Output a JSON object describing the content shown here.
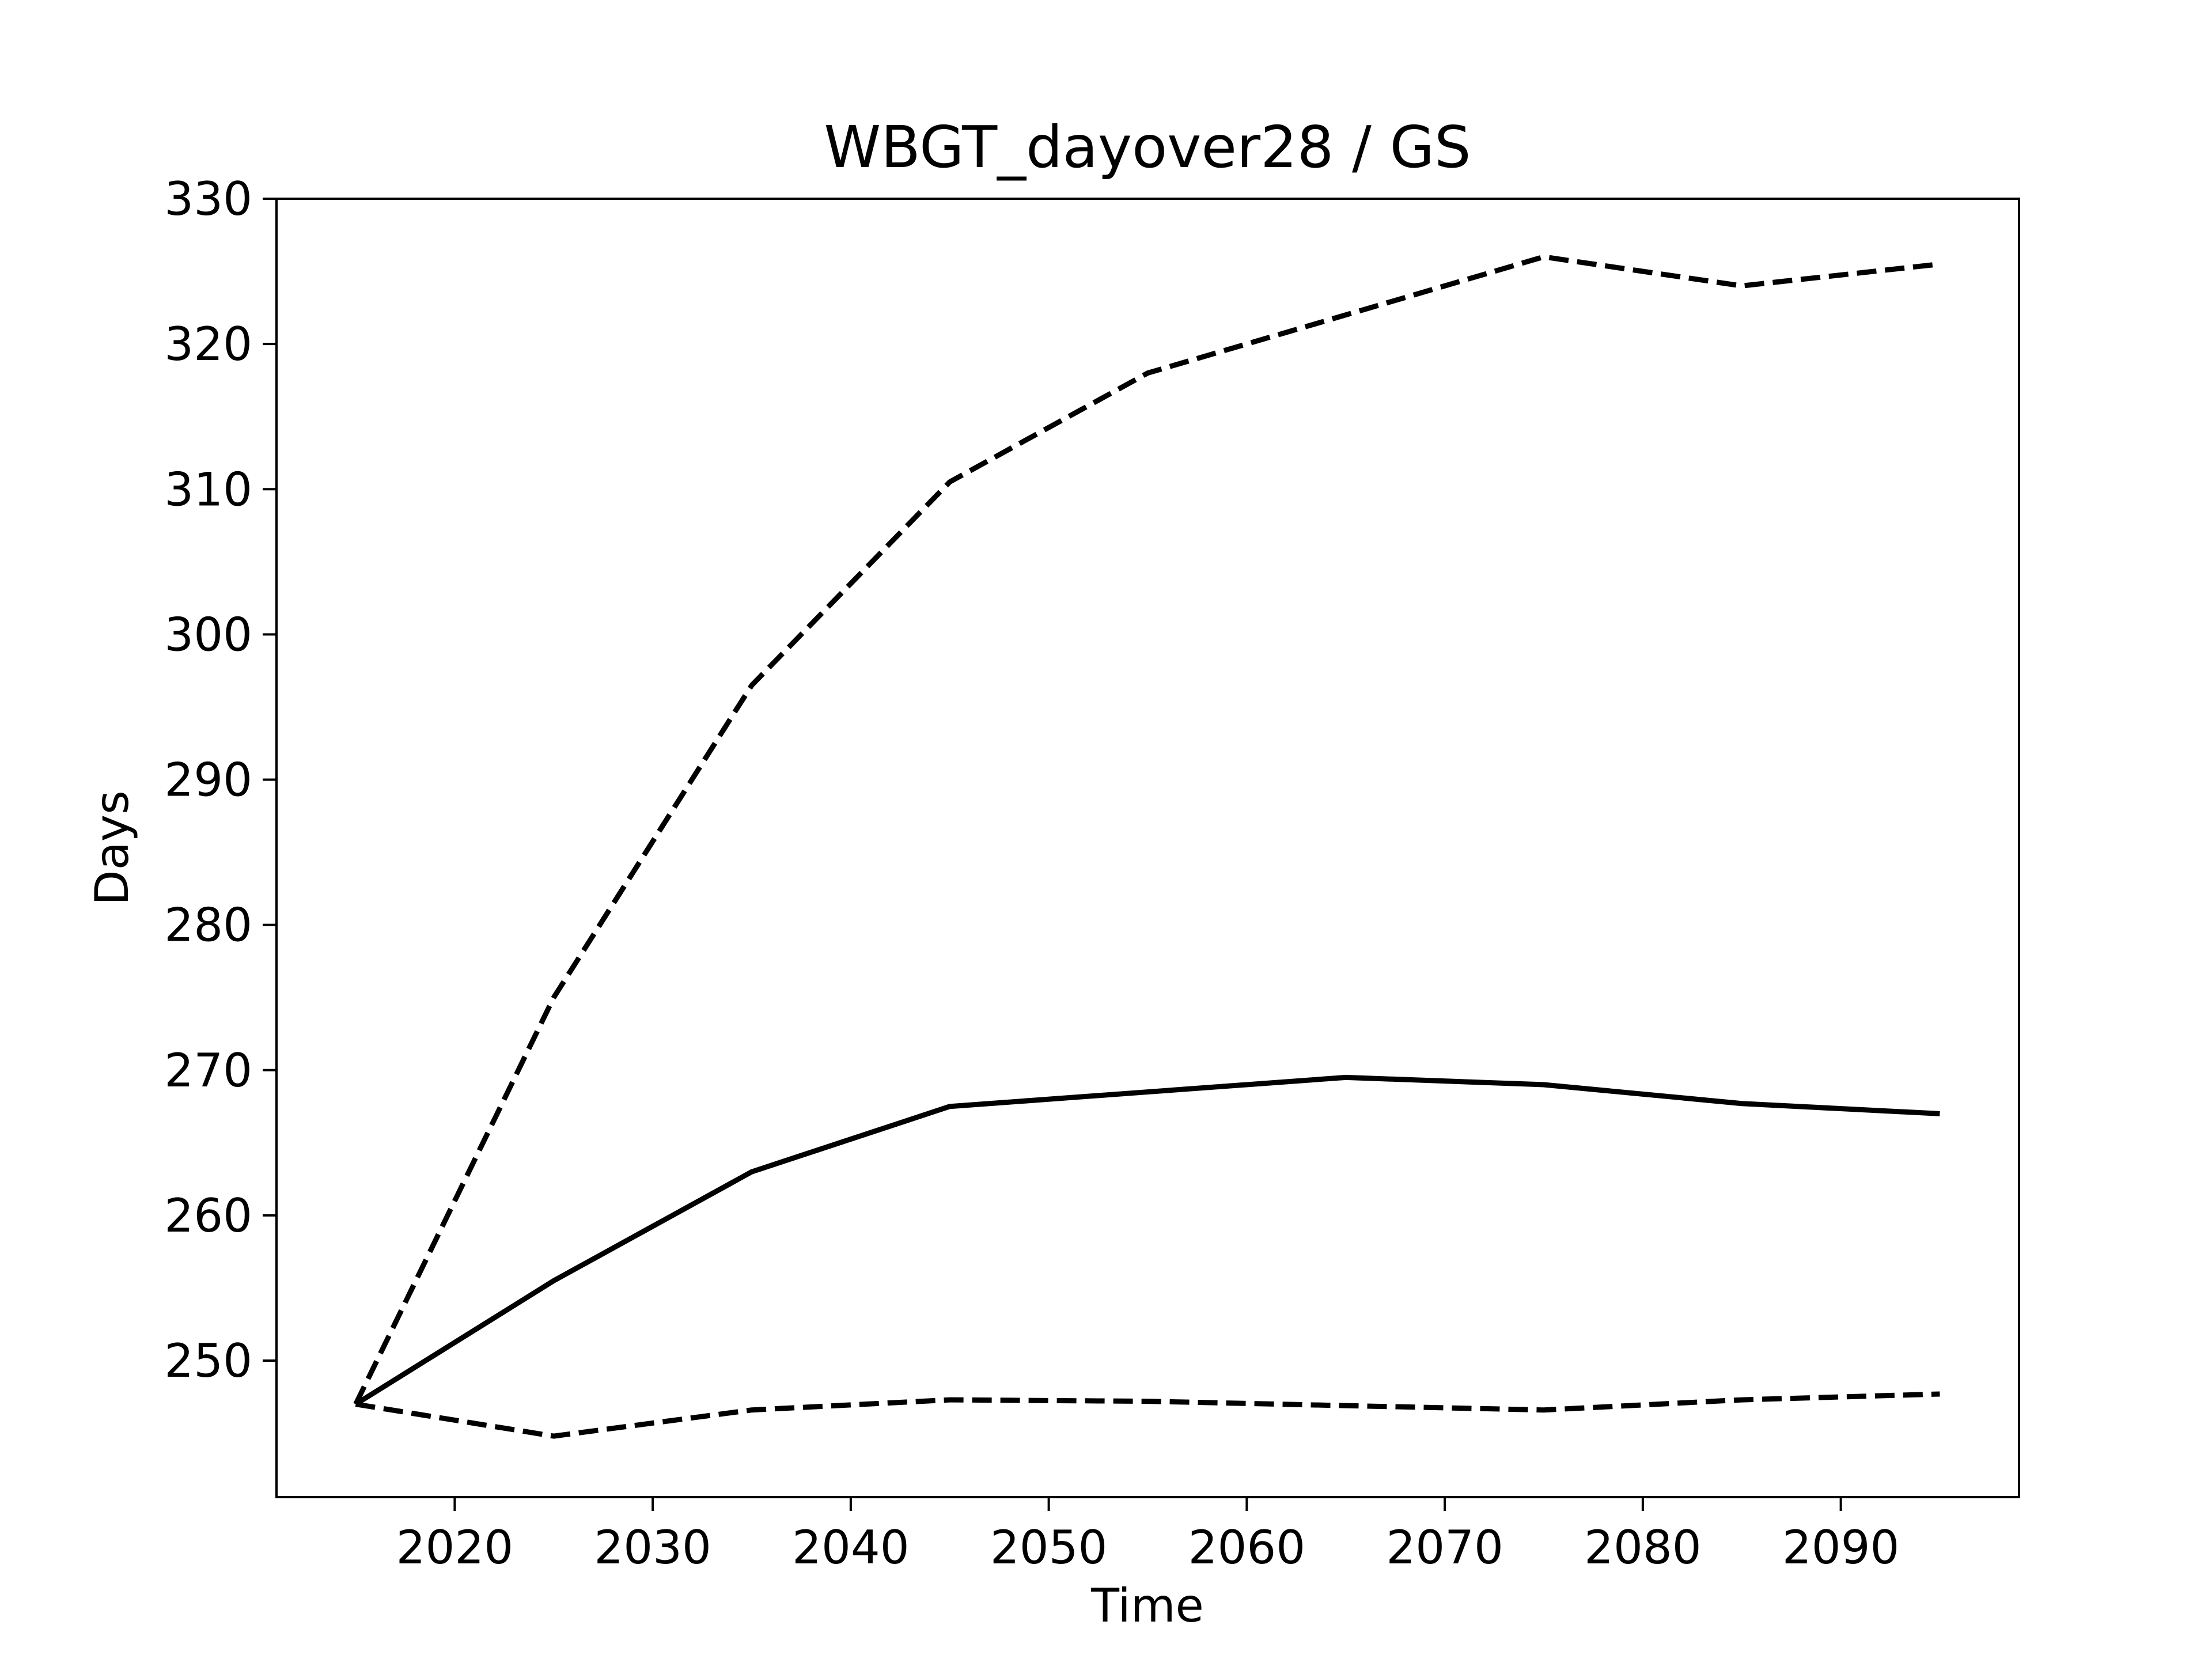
{
  "chart_data": {
    "type": "line",
    "title": "WBGT_dayover28 / GS",
    "xlabel": "Time",
    "ylabel": "Days",
    "x": [
      2015,
      2025,
      2035,
      2045,
      2055,
      2065,
      2075,
      2085,
      2095
    ],
    "series": [
      {
        "style": "dashed",
        "values": [
          247.0,
          275.0,
          296.5,
          310.5,
          318.0,
          322.0,
          326.0,
          324.0,
          325.5
        ]
      },
      {
        "style": "solid",
        "values": [
          247.0,
          255.5,
          263.0,
          267.5,
          268.5,
          269.5,
          269.0,
          267.7,
          267.0
        ]
      },
      {
        "style": "dashed",
        "values": [
          247.0,
          244.8,
          246.6,
          247.3,
          247.2,
          246.9,
          246.6,
          247.3,
          247.7
        ]
      }
    ],
    "xlim": [
      2011,
      2099
    ],
    "ylim": [
      240.6,
      330
    ],
    "xticks": [
      2020,
      2030,
      2040,
      2050,
      2060,
      2070,
      2080,
      2090
    ],
    "yticks": [
      250,
      260,
      270,
      280,
      290,
      300,
      310,
      320,
      330
    ],
    "grid": false,
    "line_color": "#000000"
  }
}
